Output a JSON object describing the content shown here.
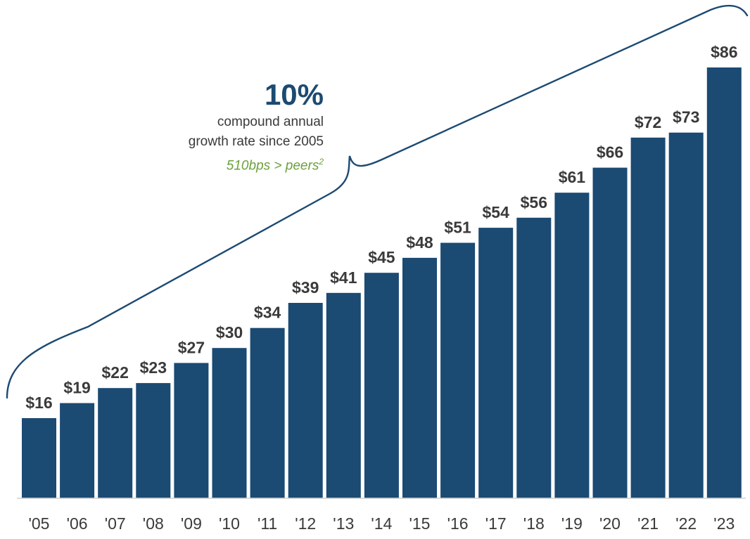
{
  "chart_data": {
    "type": "bar",
    "categories": [
      "'05",
      "'06",
      "'07",
      "'08",
      "'09",
      "'10",
      "'11",
      "'12",
      "'13",
      "'14",
      "'15",
      "'16",
      "'17",
      "'18",
      "'19",
      "'20",
      "'21",
      "'22",
      "'23"
    ],
    "values": [
      16,
      19,
      22,
      23,
      27,
      30,
      34,
      39,
      41,
      45,
      48,
      51,
      54,
      56,
      61,
      66,
      72,
      73,
      86
    ],
    "value_labels": [
      "$16",
      "$19",
      "$22",
      "$23",
      "$27",
      "$30",
      "$34",
      "$39",
      "$41",
      "$45",
      "$48",
      "$51",
      "$54",
      "$56",
      "$61",
      "$66",
      "$72",
      "$73",
      "$86"
    ],
    "title": "",
    "xlabel": "",
    "ylabel": "",
    "ylim": [
      0,
      86
    ],
    "grid": false,
    "legend": "none",
    "colors": {
      "bar": "#1b4a73",
      "axis": "#cfcfcf",
      "label": "#3a3a3a",
      "bracket": "#1c4a72"
    }
  },
  "callout": {
    "headline": "10%",
    "line1": "compound annual",
    "line2": "growth rate since 2005",
    "note": "510bps > peers",
    "note_sup": "2"
  }
}
